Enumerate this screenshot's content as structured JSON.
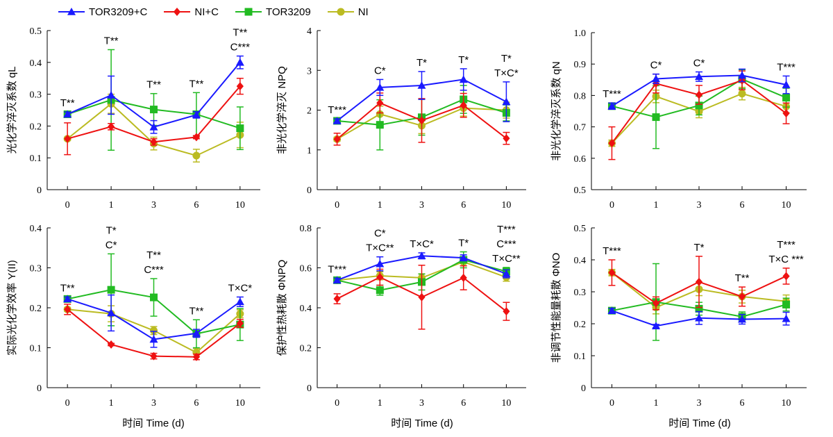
{
  "legend": [
    {
      "name": "TOR3209+C",
      "color": "#1a1aff",
      "marker": "triangle"
    },
    {
      "name": "NI+C",
      "color": "#ee1111",
      "marker": "diamond"
    },
    {
      "name": "TOR3209",
      "color": "#22bb22",
      "marker": "square"
    },
    {
      "name": "NI",
      "color": "#bbbb22",
      "marker": "circle"
    }
  ],
  "chart_data": [
    {
      "type": "line",
      "ylabel": "光化学淬灭系数 qL",
      "categories": [
        "0",
        "1",
        "3",
        "6",
        "10"
      ],
      "ylim": [
        0,
        0.5
      ],
      "yticks": [
        "0",
        "0.1",
        "0.2",
        "0.3",
        "0.4",
        "0.5"
      ],
      "series": [
        {
          "name": "TOR3209+C",
          "values": [
            0.237,
            0.297,
            0.197,
            0.235,
            0.4
          ],
          "err": [
            0.007,
            0.06,
            0.02,
            0.01,
            0.02
          ]
        },
        {
          "name": "NI+C",
          "values": [
            0.16,
            0.198,
            0.15,
            0.165,
            0.325
          ],
          "err": [
            0.05,
            0.01,
            0.01,
            0.005,
            0.025
          ]
        },
        {
          "name": "TOR3209",
          "values": [
            0.237,
            0.282,
            0.252,
            0.237,
            0.193
          ],
          "err": [
            0.007,
            0.158,
            0.05,
            0.068,
            0.067
          ]
        },
        {
          "name": "NI",
          "values": [
            0.16,
            0.27,
            0.145,
            0.107,
            0.172
          ],
          "err": [
            0.005,
            0.03,
            0.02,
            0.02,
            0.04
          ]
        }
      ],
      "annotations": [
        [
          "T**"
        ],
        [
          "T**"
        ],
        [
          "T**"
        ],
        [
          "T**"
        ],
        [
          "T**",
          "C***"
        ]
      ]
    },
    {
      "type": "line",
      "ylabel": "非光化学淬灭 NPQ",
      "categories": [
        "0",
        "1",
        "3",
        "6",
        "10"
      ],
      "ylim": [
        0,
        4
      ],
      "yticks": [
        "0",
        "1",
        "2",
        "3",
        "4"
      ],
      "series": [
        {
          "name": "TOR3209+C",
          "values": [
            1.73,
            2.57,
            2.62,
            2.77,
            2.21
          ],
          "err": [
            0.05,
            0.2,
            0.35,
            0.27,
            0.5
          ]
        },
        {
          "name": "NI+C",
          "values": [
            1.27,
            2.18,
            1.74,
            2.12,
            1.29
          ],
          "err": [
            0.15,
            0.25,
            0.55,
            0.3,
            0.15
          ]
        },
        {
          "name": "TOR3209",
          "values": [
            1.73,
            1.63,
            1.82,
            2.27,
            1.93
          ],
          "err": [
            0.05,
            0.63,
            0.45,
            0.35,
            0.2
          ]
        },
        {
          "name": "NI",
          "values": [
            1.27,
            1.9,
            1.61,
            2.05,
            2.0
          ],
          "err": [
            0.05,
            0.2,
            0.2,
            0.2,
            0.2
          ]
        }
      ],
      "annotations": [
        [
          "T***"
        ],
        [
          "C*"
        ],
        [
          "T*"
        ],
        [
          "T*"
        ],
        [
          "T*",
          "T×C*"
        ]
      ]
    },
    {
      "type": "line",
      "ylabel": "非光化学淬灭系数 qN",
      "categories": [
        "0",
        "1",
        "3",
        "6",
        "10"
      ],
      "ylim": [
        0.5,
        1.0
      ],
      "yticks": [
        "0.5",
        "0.6",
        "0.7",
        "0.8",
        "0.9",
        "1.0"
      ],
      "series": [
        {
          "name": "TOR3209+C",
          "values": [
            0.766,
            0.853,
            0.86,
            0.864,
            0.834
          ],
          "err": [
            0.01,
            0.015,
            0.015,
            0.02,
            0.028
          ]
        },
        {
          "name": "NI+C",
          "values": [
            0.648,
            0.838,
            0.802,
            0.848,
            0.743
          ],
          "err": [
            0.052,
            0.03,
            0.03,
            0.03,
            0.033
          ]
        },
        {
          "name": "TOR3209",
          "values": [
            0.766,
            0.731,
            0.768,
            0.852,
            0.793
          ],
          "err": [
            0.01,
            0.1,
            0.03,
            0.03,
            0.03
          ]
        },
        {
          "name": "NI",
          "values": [
            0.648,
            0.797,
            0.749,
            0.806,
            0.765
          ],
          "err": [
            0.01,
            0.02,
            0.02,
            0.02,
            0.02
          ]
        }
      ],
      "annotations": [
        [
          "T***"
        ],
        [
          "C*"
        ],
        [
          "C*"
        ],
        [],
        [
          "T***"
        ]
      ]
    },
    {
      "type": "line",
      "ylabel": "实际光化学效率 Y(II)",
      "categories": [
        "0",
        "1",
        "3",
        "6",
        "10"
      ],
      "ylim": [
        0,
        0.4
      ],
      "yticks": [
        "0",
        "0.1",
        "0.2",
        "0.3",
        "0.4"
      ],
      "series": [
        {
          "name": "TOR3209+C",
          "values": [
            0.222,
            0.187,
            0.121,
            0.136,
            0.215
          ],
          "err": [
            0.005,
            0.045,
            0.02,
            0.01,
            0.012
          ]
        },
        {
          "name": "NI+C",
          "values": [
            0.196,
            0.108,
            0.079,
            0.077,
            0.161
          ],
          "err": [
            0.013,
            0.003,
            0.007,
            0.007,
            0.01
          ]
        },
        {
          "name": "TOR3209",
          "values": [
            0.222,
            0.245,
            0.226,
            0.135,
            0.158
          ],
          "err": [
            0.005,
            0.09,
            0.047,
            0.035,
            0.04
          ]
        },
        {
          "name": "NI",
          "values": [
            0.196,
            0.185,
            0.143,
            0.088,
            0.185
          ],
          "err": [
            0.005,
            0.02,
            0.01,
            0.01,
            0.01
          ]
        }
      ],
      "annotations": [
        [
          "T**"
        ],
        [
          "T*",
          "C*"
        ],
        [
          "T**",
          "C***"
        ],
        [
          "T**"
        ],
        [
          "T×C*"
        ]
      ]
    },
    {
      "type": "line",
      "ylabel": "保护性热耗散 ΦNPQ",
      "categories": [
        "0",
        "1",
        "3",
        "6",
        "10"
      ],
      "ylim": [
        0,
        0.8
      ],
      "yticks": [
        "0",
        "0.2",
        "0.4",
        "0.6",
        "0.8"
      ],
      "series": [
        {
          "name": "TOR3209+C",
          "values": [
            0.538,
            0.62,
            0.66,
            0.65,
            0.57
          ],
          "err": [
            0.01,
            0.035,
            0.015,
            0.015,
            0.02
          ]
        },
        {
          "name": "NI+C",
          "values": [
            0.445,
            0.553,
            0.453,
            0.55,
            0.382
          ],
          "err": [
            0.025,
            0.04,
            0.16,
            0.06,
            0.045
          ]
        },
        {
          "name": "TOR3209",
          "values": [
            0.538,
            0.488,
            0.529,
            0.64,
            0.582
          ],
          "err": [
            0.01,
            0.025,
            0.04,
            0.04,
            0.02
          ]
        },
        {
          "name": "NI",
          "values": [
            0.538,
            0.56,
            0.55,
            0.63,
            0.553
          ],
          "err": [
            0.01,
            0.02,
            0.02,
            0.02,
            0.02
          ]
        }
      ],
      "annotations": [
        [
          "T***"
        ],
        [
          "C*",
          "T×C**"
        ],
        [
          "T×C*"
        ],
        [
          "T*"
        ],
        [
          "T***",
          "C***",
          "T×C**"
        ]
      ]
    },
    {
      "type": "line",
      "ylabel": "非调节性能量耗散 ΦNO",
      "categories": [
        "0",
        "1",
        "3",
        "6",
        "10"
      ],
      "ylim": [
        0,
        0.5
      ],
      "yticks": [
        "0",
        "0.1",
        "0.2",
        "0.3",
        "0.4",
        "0.5"
      ],
      "series": [
        {
          "name": "TOR3209+C",
          "values": [
            0.241,
            0.193,
            0.218,
            0.214,
            0.216
          ],
          "err": [
            0.007,
            0.005,
            0.02,
            0.015,
            0.02
          ]
        },
        {
          "name": "NI+C",
          "values": [
            0.36,
            0.264,
            0.331,
            0.285,
            0.349
          ],
          "err": [
            0.04,
            0.02,
            0.08,
            0.03,
            0.025
          ]
        },
        {
          "name": "TOR3209",
          "values": [
            0.241,
            0.268,
            0.247,
            0.222,
            0.26
          ],
          "err": [
            0.007,
            0.12,
            0.02,
            0.015,
            0.02
          ]
        },
        {
          "name": "NI",
          "values": [
            0.36,
            0.251,
            0.308,
            0.285,
            0.27
          ],
          "err": [
            0.01,
            0.02,
            0.02,
            0.02,
            0.02
          ]
        }
      ],
      "annotations": [
        [
          "T***"
        ],
        [],
        [
          "T*"
        ],
        [
          "T**"
        ],
        [
          "T***",
          "T×C ***"
        ]
      ]
    }
  ],
  "xlabel_bottom": "时间 Time (d)"
}
